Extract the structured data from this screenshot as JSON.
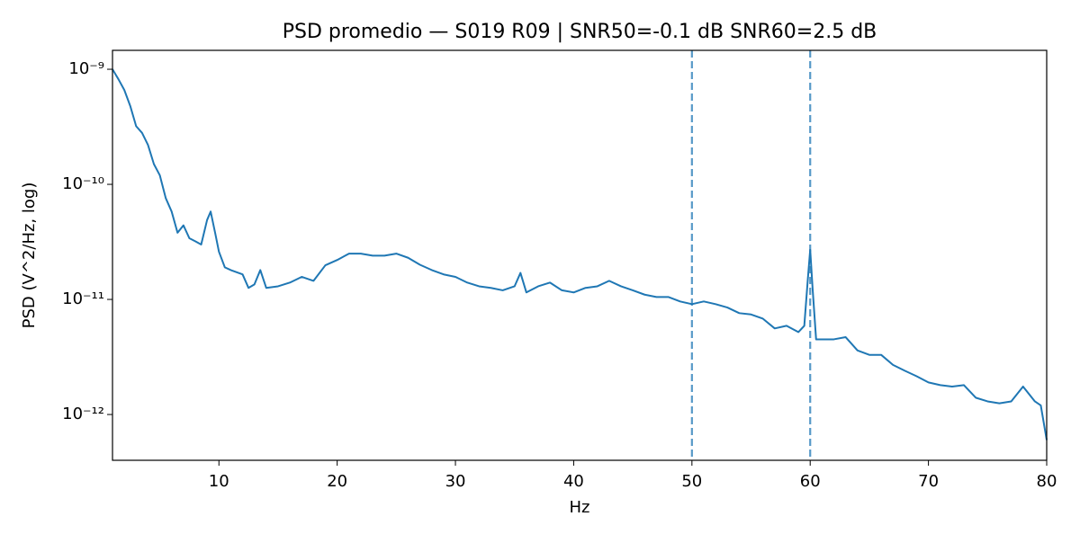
{
  "chart_data": {
    "type": "line",
    "title": "PSD promedio — S019 R09 | SNR50=-0.1 dB  SNR60=2.5 dB",
    "xlabel": "Hz",
    "ylabel": "PSD (V^2/Hz, log)",
    "x": [
      1,
      1.5,
      2,
      2.5,
      3,
      3.5,
      4,
      4.5,
      5,
      5.5,
      6,
      6.5,
      7,
      7.5,
      8,
      8.5,
      9,
      9.3,
      9.7,
      10,
      10.5,
      11,
      12,
      12.5,
      13,
      13.5,
      14,
      15,
      16,
      17,
      18,
      19,
      20,
      21,
      22,
      23,
      24,
      25,
      26,
      27,
      28,
      29,
      30,
      31,
      32,
      33,
      34,
      35,
      35.5,
      36,
      37,
      38,
      39,
      40,
      41,
      42,
      43,
      44,
      45,
      46,
      47,
      48,
      49,
      50,
      51,
      52,
      53,
      54,
      55,
      56,
      57,
      58,
      59,
      59.5,
      59.8,
      60,
      60.2,
      60.5,
      61,
      62,
      63,
      64,
      65,
      66,
      67,
      68,
      69,
      70,
      71,
      72,
      73,
      74,
      75,
      76,
      77,
      78,
      79,
      79.5,
      80
    ],
    "series": [
      {
        "name": "PSD",
        "color": "#1f77b4",
        "values": [
          1e-09,
          8.2e-10,
          6.6e-10,
          4.8e-10,
          3.2e-10,
          2.8e-10,
          2.2e-10,
          1.5e-10,
          1.2e-10,
          7.6e-11,
          5.8e-11,
          3.8e-11,
          4.4e-11,
          3.4e-11,
          3.2e-11,
          3e-11,
          4.9e-11,
          5.8e-11,
          3.7e-11,
          2.6e-11,
          1.9e-11,
          1.8e-11,
          1.65e-11,
          1.26e-11,
          1.35e-11,
          1.8e-11,
          1.26e-11,
          1.3e-11,
          1.4e-11,
          1.57e-11,
          1.45e-11,
          1.98e-11,
          2.2e-11,
          2.5e-11,
          2.5e-11,
          2.4e-11,
          2.4e-11,
          2.5e-11,
          2.3e-11,
          2e-11,
          1.8e-11,
          1.65e-11,
          1.57e-11,
          1.4e-11,
          1.3e-11,
          1.26e-11,
          1.2e-11,
          1.3e-11,
          1.7e-11,
          1.15e-11,
          1.3e-11,
          1.4e-11,
          1.2e-11,
          1.15e-11,
          1.26e-11,
          1.3e-11,
          1.45e-11,
          1.3e-11,
          1.2e-11,
          1.1e-11,
          1.05e-11,
          1.05e-11,
          9.6e-12,
          9.1e-12,
          9.6e-12,
          9.1e-12,
          8.5e-12,
          7.6e-12,
          7.4e-12,
          6.8e-12,
          5.6e-12,
          5.9e-12,
          5.2e-12,
          5.9e-12,
          1.5e-11,
          2.7e-11,
          1.26e-11,
          4.5e-12,
          4.5e-12,
          4.5e-12,
          4.7e-12,
          3.6e-12,
          3.3e-12,
          3.3e-12,
          2.7e-12,
          2.4e-12,
          2.15e-12,
          1.9e-12,
          1.8e-12,
          1.75e-12,
          1.8e-12,
          1.4e-12,
          1.3e-12,
          1.25e-12,
          1.3e-12,
          1.75e-12,
          1.3e-12,
          1.2e-12,
          6e-13
        ]
      }
    ],
    "vlines": [
      50,
      60
    ],
    "vline_color": "#1f77b4",
    "xlim": [
      1,
      80
    ],
    "xticks": [
      10,
      20,
      30,
      40,
      50,
      60,
      70,
      80
    ],
    "ylim": [
      4e-13,
      1.46e-09
    ],
    "yscale": "log",
    "yticks": [
      {
        "value": 1e-12,
        "label": "10⁻¹²"
      },
      {
        "value": 1e-11,
        "label": "10⁻¹¹"
      },
      {
        "value": 1e-10,
        "label": "10⁻¹⁰"
      },
      {
        "value": 1e-09,
        "label": "10⁻⁹"
      }
    ]
  }
}
